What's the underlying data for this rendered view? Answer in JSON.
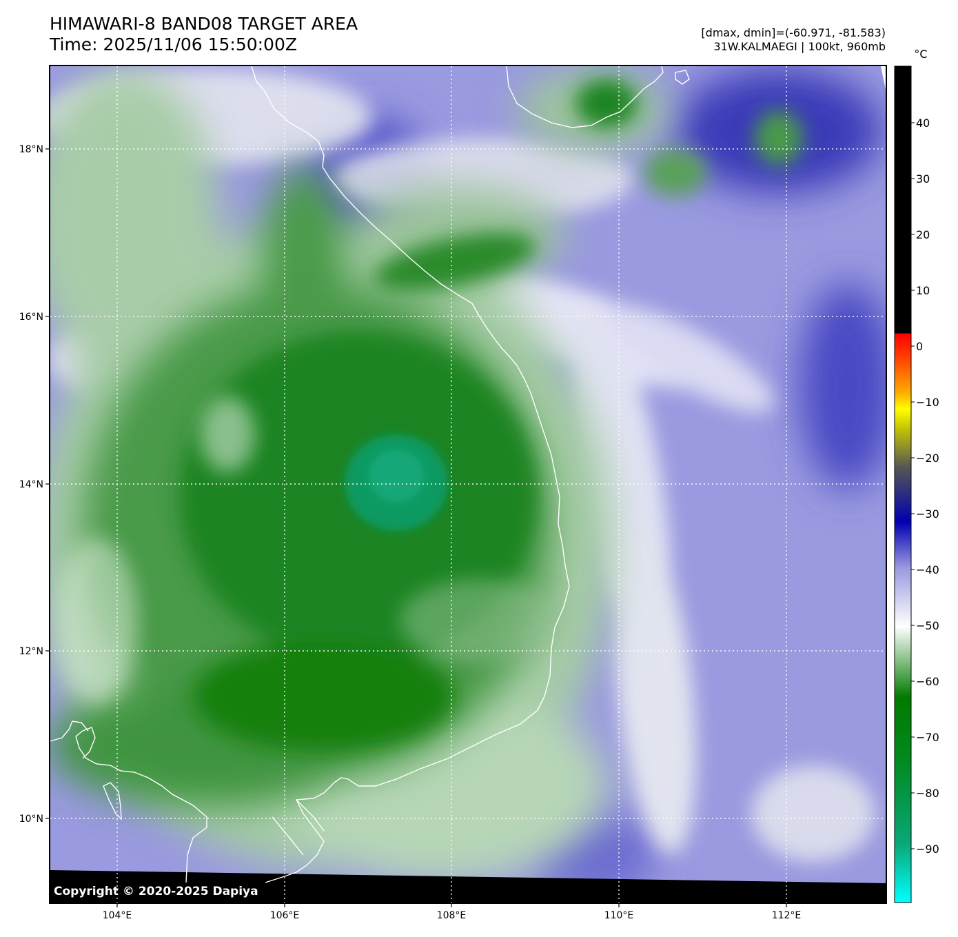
{
  "header": {
    "title_line1": "HIMAWARI-8 BAND08 TARGET AREA",
    "title_line2": "Time: 2025/11/06 15:50:00Z",
    "dmax_dmin": "[dmax, dmin]=(-60.971, -81.583)",
    "storm_info": "31W.KALMAEGI | 100kt, 960mb"
  },
  "map": {
    "lon_labels": [
      "104°E",
      "106°E",
      "108°E",
      "110°E",
      "112°E"
    ],
    "lat_labels": [
      "18°N",
      "16°N",
      "14°N",
      "12°N",
      "10°N"
    ],
    "gridlines": "dotted white",
    "coastline_color": "#ffffff",
    "storm_center": {
      "lon": 107.4,
      "lat": 13.9
    }
  },
  "colorbar": {
    "unit": "°C",
    "ticks": [
      "40",
      "30",
      "20",
      "10",
      "0",
      "−10",
      "−20",
      "−30",
      "−40",
      "−50",
      "−60",
      "−70",
      "−80",
      "−90"
    ],
    "stops": [
      "#00ffff",
      "#0a9a6e",
      "#007a00",
      "#ffffff",
      "#9a9ae0",
      "#0000b0",
      "#555555",
      "#ffff00",
      "#ff8c00",
      "#ff0000",
      "#000000"
    ]
  },
  "footer": {
    "copyright": "Copyright © 2020-2025 Dapiya"
  }
}
